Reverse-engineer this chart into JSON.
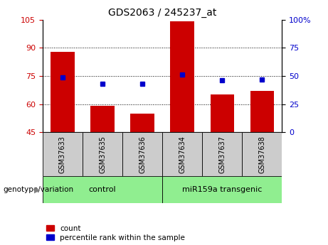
{
  "title": "GDS2063 / 245237_at",
  "samples": [
    "GSM37633",
    "GSM37635",
    "GSM37636",
    "GSM37634",
    "GSM37637",
    "GSM37638"
  ],
  "bar_values": [
    88,
    59,
    55,
    104,
    65,
    67
  ],
  "percentile_values": [
    49,
    43,
    43,
    51,
    46,
    47
  ],
  "bar_bottom": 45,
  "ylim_left": [
    45,
    105
  ],
  "ylim_right": [
    0,
    100
  ],
  "yticks_left": [
    45,
    60,
    75,
    90,
    105
  ],
  "yticks_right": [
    0,
    25,
    50,
    75,
    100
  ],
  "bar_color": "#cc0000",
  "dot_color": "#0000cc",
  "grid_yticks": [
    60,
    75,
    90
  ],
  "group_label": "genotype/variation",
  "group1_label": "control",
  "group1_color": "#90ee90",
  "group1_indices": [
    0,
    1,
    2
  ],
  "group2_label": "miR159a transgenic",
  "group2_color": "#90ee90",
  "group2_indices": [
    3,
    4,
    5
  ],
  "sample_box_color": "#cccccc",
  "legend_count_label": "count",
  "legend_pct_label": "percentile rank within the sample",
  "title_fontsize": 10,
  "left_tick_color": "#cc0000",
  "right_tick_color": "#0000cc",
  "tick_fontsize": 8,
  "label_fontsize": 8
}
